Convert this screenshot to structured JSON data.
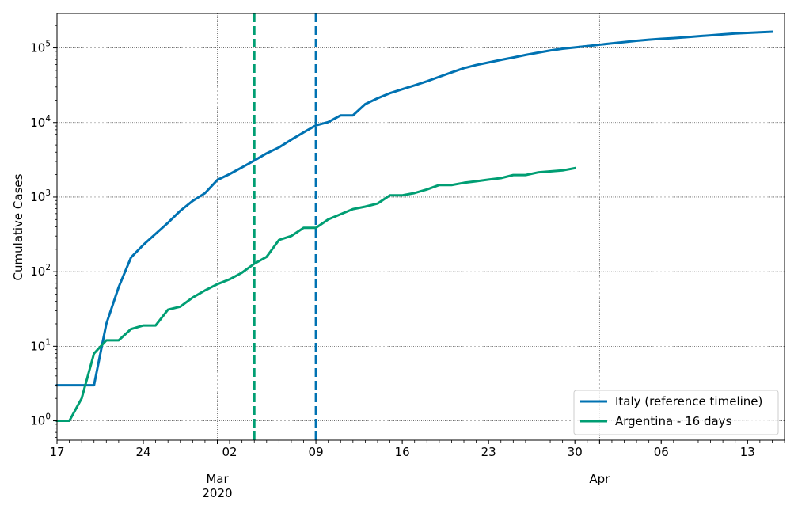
{
  "chart_data": {
    "type": "line",
    "ylabel": "Cumulative Cases",
    "yscale": "log",
    "ylim": [
      0.55,
      290000
    ],
    "xlim": [
      "2020-02-17",
      "2020-04-16"
    ],
    "grid": true,
    "legend_position": "lower-right",
    "x_ticks": [
      {
        "date": "2020-02-17",
        "label": "17"
      },
      {
        "date": "2020-02-24",
        "label": "24"
      },
      {
        "date": "2020-03-02",
        "label": "02"
      },
      {
        "date": "2020-03-09",
        "label": "09"
      },
      {
        "date": "2020-03-16",
        "label": "16"
      },
      {
        "date": "2020-03-23",
        "label": "23"
      },
      {
        "date": "2020-03-30",
        "label": "30"
      },
      {
        "date": "2020-04-06",
        "label": "06"
      },
      {
        "date": "2020-04-13",
        "label": "13"
      }
    ],
    "x_month_labels": [
      {
        "date": "2020-03-01",
        "label": "Mar",
        "sublabel": "2020"
      },
      {
        "date": "2020-04-01",
        "label": "Apr",
        "sublabel": ""
      }
    ],
    "y_ticks": [
      {
        "value": 1,
        "base": "10",
        "exp": "0"
      },
      {
        "value": 10,
        "base": "10",
        "exp": "1"
      },
      {
        "value": 100,
        "base": "10",
        "exp": "2"
      },
      {
        "value": 1000,
        "base": "10",
        "exp": "3"
      },
      {
        "value": 10000,
        "base": "10",
        "exp": "4"
      },
      {
        "value": 100000,
        "base": "10",
        "exp": "5"
      }
    ],
    "vlines": [
      {
        "date": "2020-03-04",
        "color": "#009e73"
      },
      {
        "date": "2020-03-09",
        "color": "#0072b2"
      }
    ],
    "series": [
      {
        "name": "Italy (reference timeline)",
        "color": "#0072b2",
        "points": [
          [
            "2020-02-17",
            3
          ],
          [
            "2020-02-18",
            3
          ],
          [
            "2020-02-19",
            3
          ],
          [
            "2020-02-20",
            3
          ],
          [
            "2020-02-21",
            20
          ],
          [
            "2020-02-22",
            62
          ],
          [
            "2020-02-23",
            155
          ],
          [
            "2020-02-24",
            229
          ],
          [
            "2020-02-25",
            322
          ],
          [
            "2020-02-26",
            453
          ],
          [
            "2020-02-27",
            655
          ],
          [
            "2020-02-28",
            888
          ],
          [
            "2020-02-29",
            1128
          ],
          [
            "2020-03-01",
            1694
          ],
          [
            "2020-03-02",
            2036
          ],
          [
            "2020-03-03",
            2502
          ],
          [
            "2020-03-04",
            3089
          ],
          [
            "2020-03-05",
            3858
          ],
          [
            "2020-03-06",
            4636
          ],
          [
            "2020-03-07",
            5883
          ],
          [
            "2020-03-08",
            7375
          ],
          [
            "2020-03-09",
            9172
          ],
          [
            "2020-03-10",
            10149
          ],
          [
            "2020-03-11",
            12462
          ],
          [
            "2020-03-12",
            12462
          ],
          [
            "2020-03-13",
            17660
          ],
          [
            "2020-03-14",
            21157
          ],
          [
            "2020-03-15",
            24747
          ],
          [
            "2020-03-16",
            27980
          ],
          [
            "2020-03-17",
            31506
          ],
          [
            "2020-03-18",
            35713
          ],
          [
            "2020-03-19",
            41035
          ],
          [
            "2020-03-20",
            47021
          ],
          [
            "2020-03-21",
            53578
          ],
          [
            "2020-03-22",
            59138
          ],
          [
            "2020-03-23",
            63927
          ],
          [
            "2020-03-24",
            69176
          ],
          [
            "2020-03-25",
            74386
          ],
          [
            "2020-03-26",
            80589
          ],
          [
            "2020-03-27",
            86498
          ],
          [
            "2020-03-28",
            92472
          ],
          [
            "2020-03-29",
            97689
          ],
          [
            "2020-03-30",
            101739
          ],
          [
            "2020-03-31",
            105792
          ],
          [
            "2020-04-01",
            110574
          ],
          [
            "2020-04-02",
            115242
          ],
          [
            "2020-04-03",
            119827
          ],
          [
            "2020-04-04",
            124632
          ],
          [
            "2020-04-05",
            128948
          ],
          [
            "2020-04-06",
            132547
          ],
          [
            "2020-04-07",
            135586
          ],
          [
            "2020-04-08",
            139422
          ],
          [
            "2020-04-09",
            143626
          ],
          [
            "2020-04-10",
            147577
          ],
          [
            "2020-04-11",
            152271
          ],
          [
            "2020-04-12",
            156363
          ],
          [
            "2020-04-13",
            159516
          ],
          [
            "2020-04-14",
            162488
          ],
          [
            "2020-04-15",
            165155
          ]
        ]
      },
      {
        "name": "Argentina - 16 days",
        "color": "#009e73",
        "points": [
          [
            "2020-02-17",
            1
          ],
          [
            "2020-02-18",
            1
          ],
          [
            "2020-02-19",
            2
          ],
          [
            "2020-02-20",
            8
          ],
          [
            "2020-02-21",
            12
          ],
          [
            "2020-02-22",
            12
          ],
          [
            "2020-02-23",
            17
          ],
          [
            "2020-02-24",
            19
          ],
          [
            "2020-02-25",
            19
          ],
          [
            "2020-02-26",
            31
          ],
          [
            "2020-02-27",
            34
          ],
          [
            "2020-02-28",
            45
          ],
          [
            "2020-02-29",
            56
          ],
          [
            "2020-03-01",
            68
          ],
          [
            "2020-03-02",
            79
          ],
          [
            "2020-03-03",
            97
          ],
          [
            "2020-03-04",
            128
          ],
          [
            "2020-03-05",
            158
          ],
          [
            "2020-03-06",
            266
          ],
          [
            "2020-03-07",
            301
          ],
          [
            "2020-03-08",
            387
          ],
          [
            "2020-03-09",
            387
          ],
          [
            "2020-03-10",
            502
          ],
          [
            "2020-03-11",
            589
          ],
          [
            "2020-03-12",
            690
          ],
          [
            "2020-03-13",
            745
          ],
          [
            "2020-03-14",
            820
          ],
          [
            "2020-03-15",
            1054
          ],
          [
            "2020-03-16",
            1054
          ],
          [
            "2020-03-17",
            1133
          ],
          [
            "2020-03-18",
            1265
          ],
          [
            "2020-03-19",
            1451
          ],
          [
            "2020-03-20",
            1451
          ],
          [
            "2020-03-21",
            1554
          ],
          [
            "2020-03-22",
            1628
          ],
          [
            "2020-03-23",
            1715
          ],
          [
            "2020-03-24",
            1795
          ],
          [
            "2020-03-25",
            1975
          ],
          [
            "2020-03-26",
            1975
          ],
          [
            "2020-03-27",
            2142
          ],
          [
            "2020-03-28",
            2208
          ],
          [
            "2020-03-29",
            2277
          ],
          [
            "2020-03-30",
            2443
          ]
        ]
      }
    ]
  }
}
